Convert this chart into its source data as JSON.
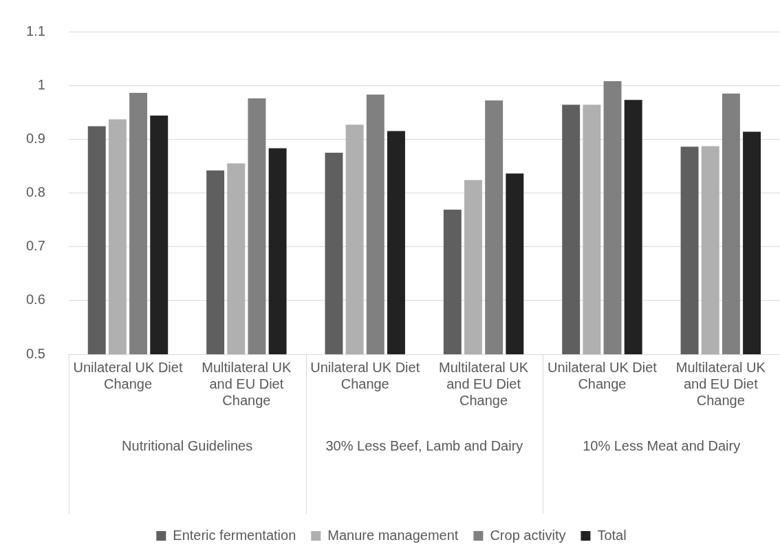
{
  "chart_data": {
    "type": "bar",
    "categories": [
      "Unilateral UK Diet Change",
      "Multilateral UK and EU Diet Change",
      "Unilateral UK Diet Change",
      "Multilateral UK and EU Diet Change",
      "Unilateral UK Diet Change",
      "Multilateral UK and EU Diet Change"
    ],
    "series": [
      {
        "name": "Enteric fermentation",
        "color": "#5f5f5f",
        "values": [
          0.924,
          0.842,
          0.875,
          0.769,
          0.964,
          0.886
        ]
      },
      {
        "name": "Manure management",
        "color": "#b0b0b0",
        "values": [
          0.937,
          0.855,
          0.927,
          0.824,
          0.964,
          0.887
        ]
      },
      {
        "name": "Crop activity",
        "color": "#808080",
        "values": [
          0.986,
          0.976,
          0.983,
          0.972,
          1.008,
          0.985
        ]
      },
      {
        "name": "Total",
        "color": "#222222",
        "values": [
          0.944,
          0.883,
          0.915,
          0.836,
          0.973,
          0.914
        ]
      }
    ],
    "annotations": [
      "Nutritional Guidelines",
      "30% Less Beef, Lamb and Dairy",
      "10% Less Meat and Dairy"
    ],
    "ylim": [
      0.5,
      1.1
    ],
    "yticks": [
      0.5,
      0.6,
      0.7,
      0.8,
      0.9,
      1,
      1.1
    ],
    "grid": "y",
    "legend": "bottom"
  }
}
